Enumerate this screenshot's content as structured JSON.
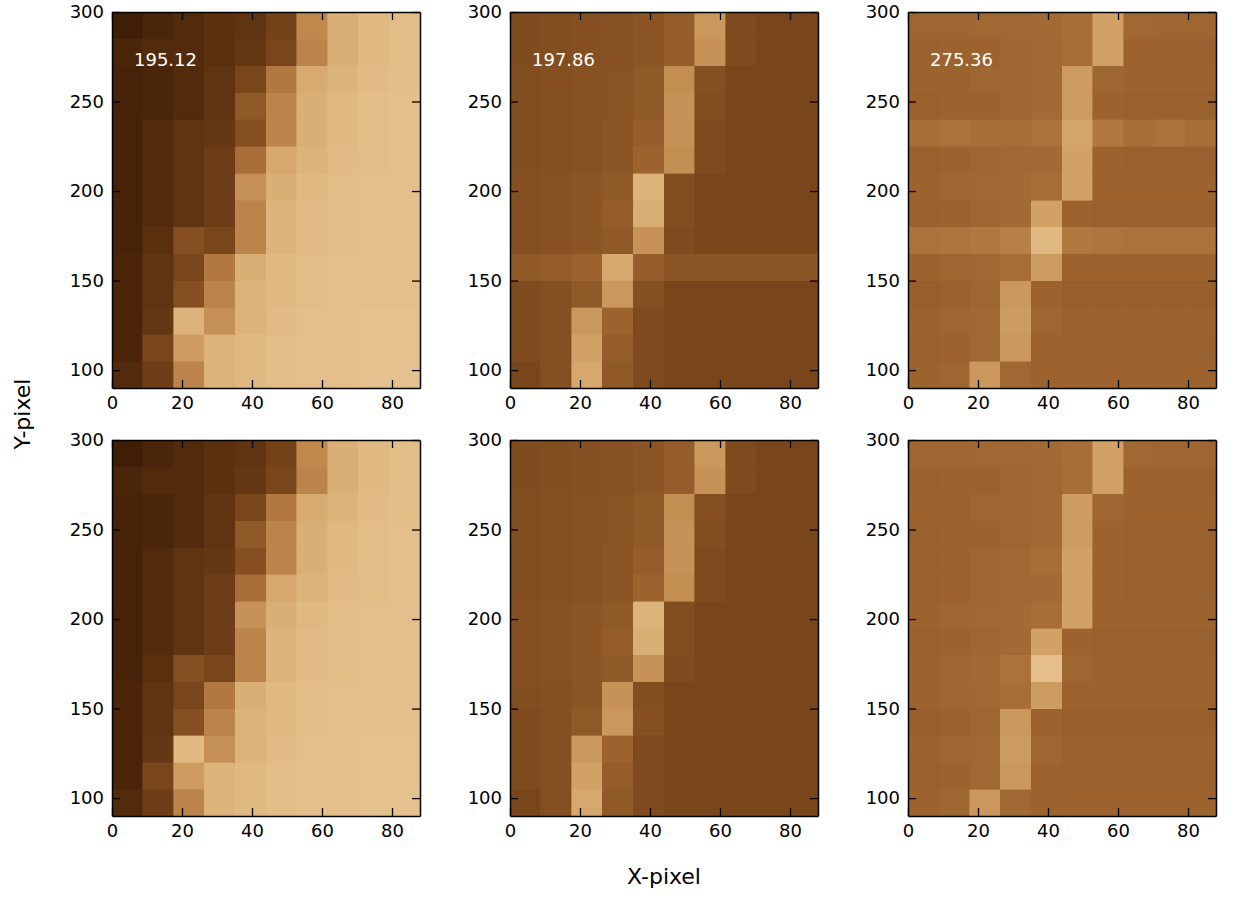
{
  "chart_data": [
    {
      "type": "heatmap",
      "label": "195.12",
      "xlim": [
        0,
        88
      ],
      "ylim": [
        90,
        300
      ],
      "xticks": [
        0,
        20,
        40,
        60,
        80
      ],
      "yticks": [
        100,
        150,
        200,
        250,
        300
      ],
      "zlim": [
        0,
        1
      ],
      "x_bins": [
        0,
        8.8,
        17.6,
        26.4,
        35.2,
        44,
        52.8,
        61.6,
        70.4,
        79.2,
        88
      ],
      "y_bins": [
        90,
        105,
        120,
        135,
        150,
        165,
        180,
        195,
        210,
        225,
        240,
        255,
        270,
        285,
        300
      ],
      "cells": [
        [
          0.15,
          0.25,
          0.6,
          0.8,
          0.82,
          0.84,
          0.85,
          0.85,
          0.86,
          0.86
        ],
        [
          0.12,
          0.3,
          0.7,
          0.8,
          0.82,
          0.84,
          0.85,
          0.85,
          0.86,
          0.86
        ],
        [
          0.12,
          0.22,
          0.8,
          0.65,
          0.8,
          0.83,
          0.85,
          0.85,
          0.86,
          0.86
        ],
        [
          0.12,
          0.2,
          0.35,
          0.6,
          0.8,
          0.82,
          0.84,
          0.85,
          0.85,
          0.85
        ],
        [
          0.12,
          0.2,
          0.3,
          0.55,
          0.78,
          0.82,
          0.84,
          0.85,
          0.85,
          0.85
        ],
        [
          0.1,
          0.18,
          0.35,
          0.3,
          0.6,
          0.8,
          0.83,
          0.84,
          0.85,
          0.85
        ],
        [
          0.1,
          0.15,
          0.2,
          0.25,
          0.6,
          0.8,
          0.83,
          0.84,
          0.85,
          0.85
        ],
        [
          0.1,
          0.15,
          0.2,
          0.25,
          0.65,
          0.78,
          0.82,
          0.84,
          0.85,
          0.85
        ],
        [
          0.1,
          0.15,
          0.2,
          0.25,
          0.5,
          0.75,
          0.8,
          0.83,
          0.84,
          0.85
        ],
        [
          0.1,
          0.15,
          0.2,
          0.22,
          0.35,
          0.6,
          0.78,
          0.82,
          0.84,
          0.85
        ],
        [
          0.1,
          0.12,
          0.15,
          0.2,
          0.4,
          0.6,
          0.78,
          0.82,
          0.84,
          0.85
        ],
        [
          0.1,
          0.12,
          0.15,
          0.2,
          0.3,
          0.55,
          0.76,
          0.8,
          0.83,
          0.84
        ],
        [
          0.12,
          0.15,
          0.15,
          0.18,
          0.22,
          0.3,
          0.6,
          0.78,
          0.82,
          0.84
        ],
        [
          0.08,
          0.12,
          0.15,
          0.18,
          0.2,
          0.28,
          0.62,
          0.78,
          0.82,
          0.84
        ]
      ]
    },
    {
      "type": "heatmap",
      "label": "197.86",
      "xlim": [
        0,
        88
      ],
      "ylim": [
        90,
        300
      ],
      "xticks": [
        0,
        20,
        40,
        60,
        80
      ],
      "yticks": [
        100,
        150,
        200,
        250,
        300
      ],
      "zlim": [
        0,
        1
      ],
      "x_bins": [
        0,
        8.8,
        17.6,
        26.4,
        35.2,
        44,
        52.8,
        61.6,
        70.4,
        79.2,
        88
      ],
      "y_bins": [
        90,
        105,
        120,
        135,
        150,
        165,
        180,
        195,
        210,
        225,
        240,
        255,
        270,
        285,
        300
      ],
      "cells": [
        [
          0.3,
          0.35,
          0.75,
          0.4,
          0.32,
          0.3,
          0.3,
          0.3,
          0.3,
          0.3
        ],
        [
          0.32,
          0.35,
          0.72,
          0.42,
          0.32,
          0.3,
          0.3,
          0.3,
          0.3,
          0.3
        ],
        [
          0.32,
          0.35,
          0.68,
          0.45,
          0.32,
          0.3,
          0.3,
          0.3,
          0.3,
          0.3
        ],
        [
          0.32,
          0.35,
          0.4,
          0.68,
          0.35,
          0.3,
          0.3,
          0.3,
          0.3,
          0.3
        ],
        [
          0.4,
          0.42,
          0.45,
          0.75,
          0.42,
          0.38,
          0.38,
          0.38,
          0.38,
          0.38
        ],
        [
          0.35,
          0.36,
          0.38,
          0.4,
          0.66,
          0.32,
          0.3,
          0.3,
          0.3,
          0.3
        ],
        [
          0.35,
          0.36,
          0.38,
          0.42,
          0.78,
          0.34,
          0.3,
          0.3,
          0.3,
          0.3
        ],
        [
          0.35,
          0.36,
          0.38,
          0.4,
          0.8,
          0.34,
          0.3,
          0.3,
          0.3,
          0.3
        ],
        [
          0.34,
          0.35,
          0.36,
          0.38,
          0.45,
          0.64,
          0.32,
          0.3,
          0.3,
          0.3
        ],
        [
          0.34,
          0.35,
          0.36,
          0.38,
          0.42,
          0.66,
          0.32,
          0.3,
          0.3,
          0.3
        ],
        [
          0.34,
          0.35,
          0.36,
          0.37,
          0.4,
          0.66,
          0.34,
          0.3,
          0.3,
          0.3
        ],
        [
          0.34,
          0.35,
          0.36,
          0.37,
          0.4,
          0.64,
          0.35,
          0.3,
          0.3,
          0.3
        ],
        [
          0.33,
          0.34,
          0.35,
          0.36,
          0.38,
          0.42,
          0.66,
          0.32,
          0.3,
          0.3
        ],
        [
          0.33,
          0.34,
          0.35,
          0.36,
          0.38,
          0.42,
          0.68,
          0.32,
          0.3,
          0.3
        ]
      ]
    },
    {
      "type": "heatmap",
      "label": "275.36",
      "xlim": [
        0,
        88
      ],
      "ylim": [
        90,
        300
      ],
      "xticks": [
        0,
        20,
        40,
        60,
        80
      ],
      "yticks": [
        100,
        150,
        200,
        250,
        300
      ],
      "zlim": [
        0,
        1
      ],
      "x_bins": [
        0,
        8.8,
        17.6,
        26.4,
        35.2,
        44,
        52.8,
        61.6,
        70.4,
        79.2,
        88
      ],
      "y_bins": [
        90,
        105,
        120,
        135,
        150,
        165,
        180,
        195,
        210,
        225,
        240,
        255,
        270,
        285,
        300
      ],
      "cells": [
        [
          0.45,
          0.46,
          0.68,
          0.47,
          0.45,
          0.45,
          0.45,
          0.45,
          0.45,
          0.45
        ],
        [
          0.44,
          0.45,
          0.47,
          0.68,
          0.45,
          0.44,
          0.44,
          0.44,
          0.44,
          0.44
        ],
        [
          0.45,
          0.46,
          0.47,
          0.7,
          0.46,
          0.45,
          0.45,
          0.45,
          0.45,
          0.45
        ],
        [
          0.43,
          0.44,
          0.46,
          0.68,
          0.45,
          0.43,
          0.43,
          0.43,
          0.43,
          0.43
        ],
        [
          0.45,
          0.46,
          0.47,
          0.5,
          0.7,
          0.45,
          0.45,
          0.45,
          0.45,
          0.45
        ],
        [
          0.52,
          0.53,
          0.55,
          0.58,
          0.82,
          0.55,
          0.53,
          0.52,
          0.52,
          0.52
        ],
        [
          0.44,
          0.45,
          0.46,
          0.48,
          0.72,
          0.45,
          0.44,
          0.44,
          0.44,
          0.44
        ],
        [
          0.45,
          0.46,
          0.47,
          0.48,
          0.5,
          0.72,
          0.45,
          0.45,
          0.45,
          0.45
        ],
        [
          0.44,
          0.45,
          0.46,
          0.47,
          0.48,
          0.72,
          0.45,
          0.44,
          0.44,
          0.44
        ],
        [
          0.5,
          0.52,
          0.5,
          0.5,
          0.52,
          0.74,
          0.55,
          0.5,
          0.52,
          0.5
        ],
        [
          0.44,
          0.45,
          0.45,
          0.46,
          0.48,
          0.7,
          0.45,
          0.44,
          0.44,
          0.44
        ],
        [
          0.45,
          0.45,
          0.46,
          0.46,
          0.48,
          0.7,
          0.46,
          0.45,
          0.45,
          0.45
        ],
        [
          0.44,
          0.45,
          0.45,
          0.46,
          0.47,
          0.5,
          0.72,
          0.45,
          0.44,
          0.44
        ],
        [
          0.46,
          0.46,
          0.47,
          0.47,
          0.48,
          0.5,
          0.72,
          0.47,
          0.46,
          0.46
        ]
      ]
    },
    {
      "type": "heatmap",
      "xlim": [
        0,
        88
      ],
      "ylim": [
        90,
        300
      ],
      "xticks": [
        0,
        20,
        40,
        60,
        80
      ],
      "yticks": [
        100,
        150,
        200,
        250,
        300
      ],
      "zlim": [
        0,
        1
      ],
      "x_bins": [
        0,
        8.8,
        17.6,
        26.4,
        35.2,
        44,
        52.8,
        61.6,
        70.4,
        79.2,
        88
      ],
      "y_bins": [
        90,
        105,
        120,
        135,
        150,
        165,
        180,
        195,
        210,
        225,
        240,
        255,
        270,
        285,
        300
      ],
      "cells": [
        [
          0.15,
          0.25,
          0.6,
          0.8,
          0.82,
          0.84,
          0.85,
          0.85,
          0.86,
          0.86
        ],
        [
          0.12,
          0.3,
          0.7,
          0.8,
          0.82,
          0.84,
          0.85,
          0.85,
          0.86,
          0.86
        ],
        [
          0.12,
          0.22,
          0.82,
          0.65,
          0.8,
          0.83,
          0.85,
          0.85,
          0.86,
          0.86
        ],
        [
          0.12,
          0.2,
          0.35,
          0.6,
          0.8,
          0.82,
          0.84,
          0.85,
          0.85,
          0.85
        ],
        [
          0.12,
          0.2,
          0.3,
          0.55,
          0.78,
          0.82,
          0.84,
          0.85,
          0.85,
          0.85
        ],
        [
          0.1,
          0.18,
          0.35,
          0.3,
          0.6,
          0.8,
          0.83,
          0.84,
          0.85,
          0.85
        ],
        [
          0.1,
          0.15,
          0.2,
          0.25,
          0.6,
          0.8,
          0.83,
          0.84,
          0.85,
          0.85
        ],
        [
          0.1,
          0.15,
          0.2,
          0.25,
          0.66,
          0.78,
          0.82,
          0.84,
          0.85,
          0.85
        ],
        [
          0.1,
          0.15,
          0.2,
          0.25,
          0.5,
          0.75,
          0.8,
          0.83,
          0.84,
          0.85
        ],
        [
          0.1,
          0.15,
          0.2,
          0.22,
          0.35,
          0.6,
          0.78,
          0.82,
          0.84,
          0.85
        ],
        [
          0.1,
          0.12,
          0.15,
          0.2,
          0.4,
          0.6,
          0.78,
          0.82,
          0.84,
          0.85
        ],
        [
          0.1,
          0.12,
          0.15,
          0.2,
          0.3,
          0.55,
          0.76,
          0.8,
          0.83,
          0.84
        ],
        [
          0.12,
          0.15,
          0.15,
          0.18,
          0.22,
          0.3,
          0.6,
          0.78,
          0.82,
          0.84
        ],
        [
          0.08,
          0.12,
          0.15,
          0.18,
          0.2,
          0.28,
          0.62,
          0.78,
          0.82,
          0.84
        ]
      ]
    },
    {
      "type": "heatmap",
      "xlim": [
        0,
        88
      ],
      "ylim": [
        90,
        300
      ],
      "xticks": [
        0,
        20,
        40,
        60,
        80
      ],
      "yticks": [
        100,
        150,
        200,
        250,
        300
      ],
      "zlim": [
        0,
        1
      ],
      "x_bins": [
        0,
        8.8,
        17.6,
        26.4,
        35.2,
        44,
        52.8,
        61.6,
        70.4,
        79.2,
        88
      ],
      "y_bins": [
        90,
        105,
        120,
        135,
        150,
        165,
        180,
        195,
        210,
        225,
        240,
        255,
        270,
        285,
        300
      ],
      "cells": [
        [
          0.3,
          0.35,
          0.75,
          0.4,
          0.32,
          0.3,
          0.3,
          0.3,
          0.3,
          0.3
        ],
        [
          0.32,
          0.35,
          0.72,
          0.42,
          0.32,
          0.3,
          0.3,
          0.3,
          0.3,
          0.3
        ],
        [
          0.32,
          0.35,
          0.68,
          0.45,
          0.32,
          0.3,
          0.3,
          0.3,
          0.3,
          0.3
        ],
        [
          0.32,
          0.35,
          0.4,
          0.68,
          0.35,
          0.3,
          0.3,
          0.3,
          0.3,
          0.3
        ],
        [
          0.34,
          0.35,
          0.38,
          0.66,
          0.34,
          0.3,
          0.3,
          0.3,
          0.3,
          0.3
        ],
        [
          0.35,
          0.36,
          0.38,
          0.4,
          0.66,
          0.32,
          0.3,
          0.3,
          0.3,
          0.3
        ],
        [
          0.35,
          0.36,
          0.38,
          0.42,
          0.78,
          0.34,
          0.3,
          0.3,
          0.3,
          0.3
        ],
        [
          0.35,
          0.36,
          0.38,
          0.4,
          0.8,
          0.34,
          0.3,
          0.3,
          0.3,
          0.3
        ],
        [
          0.34,
          0.35,
          0.36,
          0.38,
          0.45,
          0.64,
          0.32,
          0.3,
          0.3,
          0.3
        ],
        [
          0.34,
          0.35,
          0.36,
          0.38,
          0.42,
          0.66,
          0.32,
          0.3,
          0.3,
          0.3
        ],
        [
          0.34,
          0.35,
          0.36,
          0.37,
          0.4,
          0.66,
          0.34,
          0.3,
          0.3,
          0.3
        ],
        [
          0.34,
          0.35,
          0.36,
          0.37,
          0.4,
          0.64,
          0.35,
          0.3,
          0.3,
          0.3
        ],
        [
          0.33,
          0.34,
          0.35,
          0.36,
          0.38,
          0.42,
          0.66,
          0.32,
          0.3,
          0.3
        ],
        [
          0.33,
          0.34,
          0.35,
          0.36,
          0.38,
          0.42,
          0.68,
          0.32,
          0.3,
          0.3
        ]
      ]
    },
    {
      "type": "heatmap",
      "xlim": [
        0,
        88
      ],
      "ylim": [
        90,
        300
      ],
      "xticks": [
        0,
        20,
        40,
        60,
        80
      ],
      "yticks": [
        100,
        150,
        200,
        250,
        300
      ],
      "zlim": [
        0,
        1
      ],
      "x_bins": [
        0,
        8.8,
        17.6,
        26.4,
        35.2,
        44,
        52.8,
        61.6,
        70.4,
        79.2,
        88
      ],
      "y_bins": [
        90,
        105,
        120,
        135,
        150,
        165,
        180,
        195,
        210,
        225,
        240,
        255,
        270,
        285,
        300
      ],
      "cells": [
        [
          0.45,
          0.46,
          0.68,
          0.47,
          0.45,
          0.45,
          0.45,
          0.45,
          0.45,
          0.45
        ],
        [
          0.44,
          0.45,
          0.47,
          0.68,
          0.45,
          0.44,
          0.44,
          0.44,
          0.44,
          0.44
        ],
        [
          0.45,
          0.46,
          0.47,
          0.7,
          0.46,
          0.45,
          0.45,
          0.45,
          0.45,
          0.45
        ],
        [
          0.43,
          0.44,
          0.46,
          0.68,
          0.45,
          0.43,
          0.43,
          0.43,
          0.43,
          0.43
        ],
        [
          0.45,
          0.46,
          0.47,
          0.5,
          0.7,
          0.45,
          0.45,
          0.45,
          0.45,
          0.45
        ],
        [
          0.45,
          0.46,
          0.48,
          0.52,
          0.85,
          0.46,
          0.45,
          0.45,
          0.45,
          0.45
        ],
        [
          0.44,
          0.45,
          0.46,
          0.48,
          0.72,
          0.45,
          0.44,
          0.44,
          0.44,
          0.44
        ],
        [
          0.45,
          0.46,
          0.47,
          0.48,
          0.5,
          0.72,
          0.45,
          0.45,
          0.45,
          0.45
        ],
        [
          0.44,
          0.45,
          0.46,
          0.47,
          0.48,
          0.72,
          0.45,
          0.44,
          0.44,
          0.44
        ],
        [
          0.44,
          0.45,
          0.46,
          0.47,
          0.5,
          0.72,
          0.45,
          0.44,
          0.44,
          0.44
        ],
        [
          0.44,
          0.45,
          0.45,
          0.46,
          0.48,
          0.7,
          0.45,
          0.44,
          0.44,
          0.44
        ],
        [
          0.45,
          0.45,
          0.46,
          0.46,
          0.48,
          0.7,
          0.46,
          0.45,
          0.45,
          0.45
        ],
        [
          0.44,
          0.45,
          0.45,
          0.46,
          0.47,
          0.5,
          0.72,
          0.45,
          0.44,
          0.44
        ],
        [
          0.46,
          0.46,
          0.47,
          0.47,
          0.48,
          0.5,
          0.72,
          0.47,
          0.46,
          0.46
        ]
      ]
    }
  ],
  "xlabel": "X-pixel",
  "ylabel": "Y-pixel"
}
